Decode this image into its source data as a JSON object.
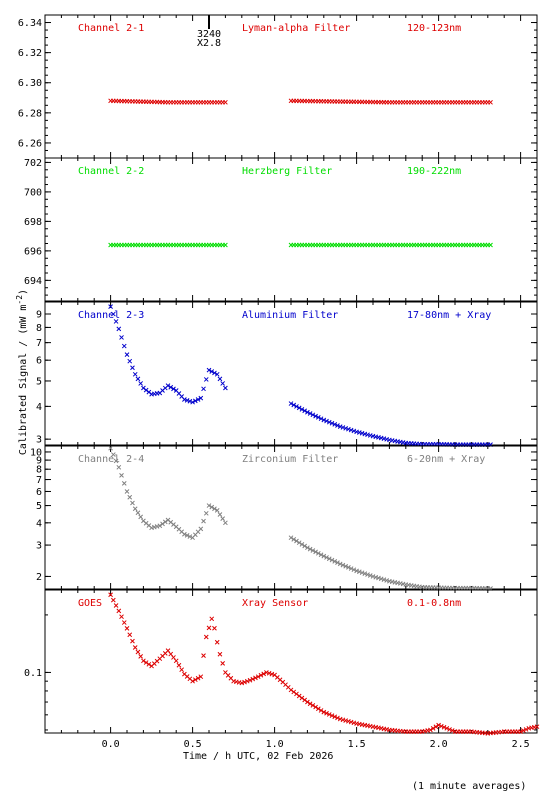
{
  "chart_data": {
    "type": "scatter",
    "xlabel": "Time / h UTC, 02 Feb 2026",
    "ylabel": "Calibrated Signal / (mW m",
    "ylabel_exponent": "-2",
    "ylabel_close": ")",
    "xlim": [
      -0.4,
      2.6
    ],
    "x_ticks": [
      0.0,
      0.5,
      1.0,
      1.5,
      2.0,
      2.5
    ],
    "x_tick_labels": [
      "0.0",
      "0.5",
      "1.0",
      "1.5",
      "2.0",
      "2.5"
    ],
    "note": "(1 minute averages)",
    "marker": {
      "x": 0.6,
      "label_top": "3240",
      "label_bottom": "X2.8"
    },
    "panels": [
      {
        "name": "Channel 2-1",
        "filter": "Lyman-alpha Filter",
        "band": "120-123nm",
        "color": "#dd0000",
        "scale": "linear",
        "ylim": [
          6.25,
          6.345
        ],
        "y_ticks": [
          6.26,
          6.28,
          6.3,
          6.32,
          6.34
        ],
        "y_tick_labels": [
          "6.26",
          "6.28",
          "6.30",
          "6.32",
          "6.34"
        ],
        "segments": [
          {
            "x": [
              0.0,
              0.35,
              0.7
            ],
            "y": [
              6.288,
              6.287,
              6.287
            ]
          },
          {
            "x": [
              1.1,
              1.7,
              2.33
            ],
            "y": [
              6.288,
              6.287,
              6.287
            ]
          }
        ]
      },
      {
        "name": "Channel 2-2",
        "filter": "Herzberg Filter",
        "band": "190-222nm",
        "color": "#00dd00",
        "scale": "linear",
        "ylim": [
          692.6,
          702.3
        ],
        "y_ticks": [
          694,
          696,
          698,
          700,
          702
        ],
        "y_tick_labels": [
          "694",
          "696",
          "698",
          "700",
          "702"
        ],
        "segments": [
          {
            "x": [
              0.0,
              0.7
            ],
            "y": [
              696.4,
              696.4
            ]
          },
          {
            "x": [
              1.1,
              2.33
            ],
            "y": [
              696.4,
              696.4
            ]
          }
        ]
      },
      {
        "name": "Channel 2-3",
        "filter": "Aluminium Filter",
        "band": "17-80nm + Xray",
        "color": "#0000cc",
        "scale": "log",
        "ylim": [
          2.85,
          10.0
        ],
        "y_ticks": [
          3,
          4,
          5,
          6,
          7,
          8,
          9
        ],
        "y_tick_labels": [
          "3",
          "4",
          "5",
          "6",
          "7",
          "8",
          "9"
        ],
        "segments": [
          {
            "x": [
              0.0,
              0.05,
              0.1,
              0.15,
              0.2,
              0.25,
              0.3,
              0.35,
              0.4,
              0.45,
              0.5,
              0.55,
              0.6,
              0.65,
              0.7
            ],
            "y": [
              9.6,
              7.9,
              6.3,
              5.3,
              4.7,
              4.45,
              4.5,
              4.8,
              4.6,
              4.25,
              4.15,
              4.3,
              5.5,
              5.3,
              4.7
            ]
          },
          {
            "x": [
              1.1,
              1.2,
              1.3,
              1.4,
              1.5,
              1.6,
              1.7,
              1.8,
              1.9,
              2.0,
              2.1,
              2.2,
              2.33
            ],
            "y": [
              4.1,
              3.8,
              3.55,
              3.35,
              3.2,
              3.08,
              2.98,
              2.9,
              2.87,
              2.87,
              2.86,
              2.86,
              2.86
            ]
          }
        ]
      },
      {
        "name": "Channel 2-4",
        "filter": "Zirconium Filter",
        "band": "6-20nm + Xray",
        "color": "#808080",
        "scale": "log",
        "ylim": [
          1.7,
          10.8
        ],
        "y_ticks": [
          2,
          3,
          4,
          5,
          6,
          7,
          8,
          9,
          10
        ],
        "y_tick_labels": [
          "2",
          "3",
          "4",
          "5",
          "6",
          "7",
          "8",
          "9",
          "10"
        ],
        "segments": [
          {
            "x": [
              0.0,
              0.05,
              0.1,
              0.15,
              0.2,
              0.25,
              0.3,
              0.35,
              0.4,
              0.45,
              0.5,
              0.55,
              0.6,
              0.65,
              0.7
            ],
            "y": [
              10.5,
              8.2,
              6.0,
              4.8,
              4.1,
              3.75,
              3.85,
              4.15,
              3.8,
              3.45,
              3.3,
              3.7,
              5.0,
              4.7,
              4.0
            ]
          },
          {
            "x": [
              1.1,
              1.2,
              1.3,
              1.4,
              1.5,
              1.6,
              1.7,
              1.8,
              1.9,
              2.0,
              2.1,
              2.2,
              2.33
            ],
            "y": [
              3.3,
              2.9,
              2.6,
              2.35,
              2.15,
              2.0,
              1.88,
              1.8,
              1.74,
              1.73,
              1.72,
              1.72,
              1.71
            ]
          }
        ]
      },
      {
        "name": "GOES",
        "filter": "Xray Sensor",
        "band": "0.1-0.8nm",
        "color": "#dd0000",
        "scale": "log",
        "ylim": [
          0.0482,
          0.27
        ],
        "y_ticks": [
          0.1
        ],
        "y_tick_labels": [
          "0.1"
        ],
        "segments": [
          {
            "x": [
              0.0,
              0.05,
              0.1,
              0.15,
              0.2,
              0.25,
              0.3,
              0.35,
              0.4,
              0.45,
              0.5,
              0.55,
              0.58,
              0.62,
              0.66,
              0.7,
              0.75,
              0.8,
              0.85,
              0.9,
              0.95,
              1.0,
              1.05,
              1.1,
              1.2,
              1.3,
              1.4,
              1.5,
              1.6,
              1.7,
              1.8,
              1.9,
              1.95,
              2.0,
              2.05,
              2.1,
              2.2,
              2.3,
              2.4,
              2.5,
              2.55,
              2.6
            ],
            "y": [
              0.255,
              0.21,
              0.17,
              0.135,
              0.115,
              0.108,
              0.118,
              0.13,
              0.115,
              0.098,
              0.09,
              0.095,
              0.15,
              0.195,
              0.13,
              0.1,
              0.09,
              0.088,
              0.091,
              0.095,
              0.1,
              0.097,
              0.089,
              0.081,
              0.07,
              0.062,
              0.057,
              0.054,
              0.052,
              0.05,
              0.049,
              0.049,
              0.05,
              0.053,
              0.051,
              0.049,
              0.049,
              0.048,
              0.049,
              0.049,
              0.051,
              0.052
            ]
          }
        ]
      }
    ]
  }
}
